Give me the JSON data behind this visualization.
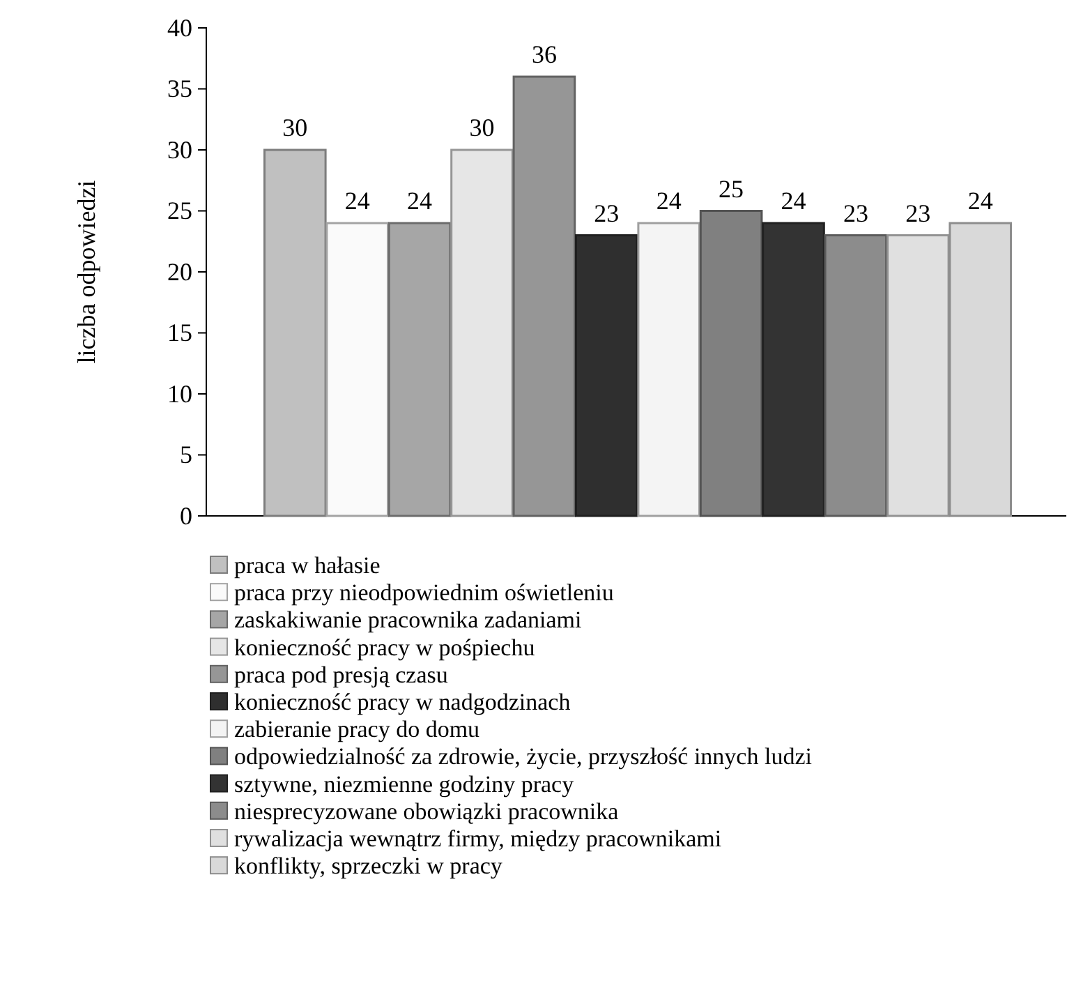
{
  "chart_data": {
    "type": "bar",
    "ylabel": "liczba odpowiedzi",
    "categories": [
      null
    ],
    "ylim": [
      0,
      40
    ],
    "yticks": [
      0,
      5,
      10,
      15,
      20,
      25,
      30,
      35,
      40
    ],
    "grid": false,
    "legend": "bottom",
    "data_labels": true,
    "series": [
      {
        "name": "praca w hałasie",
        "color": "#c0c0c0",
        "values": [
          30
        ]
      },
      {
        "name": "praca przy nieodpowiednim oświetleniu",
        "color": "#fafafa",
        "values": [
          24
        ]
      },
      {
        "name": "zaskakiwanie pracownika zadaniami",
        "color": "#a6a6a6",
        "values": [
          24
        ]
      },
      {
        "name": "konieczność pracy w pośpiechu",
        "color": "#e6e6e6",
        "values": [
          30
        ]
      },
      {
        "name": "praca pod presją czasu",
        "color": "#969696",
        "values": [
          36
        ]
      },
      {
        "name": "konieczność pracy w nadgodzinach",
        "color": "#2f2f2f",
        "values": [
          23
        ]
      },
      {
        "name": "zabieranie pracy do domu",
        "color": "#f4f4f4",
        "values": [
          24
        ]
      },
      {
        "name": "odpowiedzialność za zdrowie, życie, przyszłość innych ludzi",
        "color": "#808080",
        "values": [
          25
        ]
      },
      {
        "name": "sztywne, niezmienne godziny pracy",
        "color": "#333333",
        "values": [
          24
        ]
      },
      {
        "name": "niesprecyzowane obowiązki pracownika",
        "color": "#8c8c8c",
        "values": [
          23
        ]
      },
      {
        "name": "rywalizacja wewnątrz firmy, między pracownikami",
        "color": "#e0e0e0",
        "values": [
          23
        ]
      },
      {
        "name": "konflikty, sprzeczki w pracy",
        "color": "#d9d9d9",
        "values": [
          24
        ]
      }
    ]
  }
}
